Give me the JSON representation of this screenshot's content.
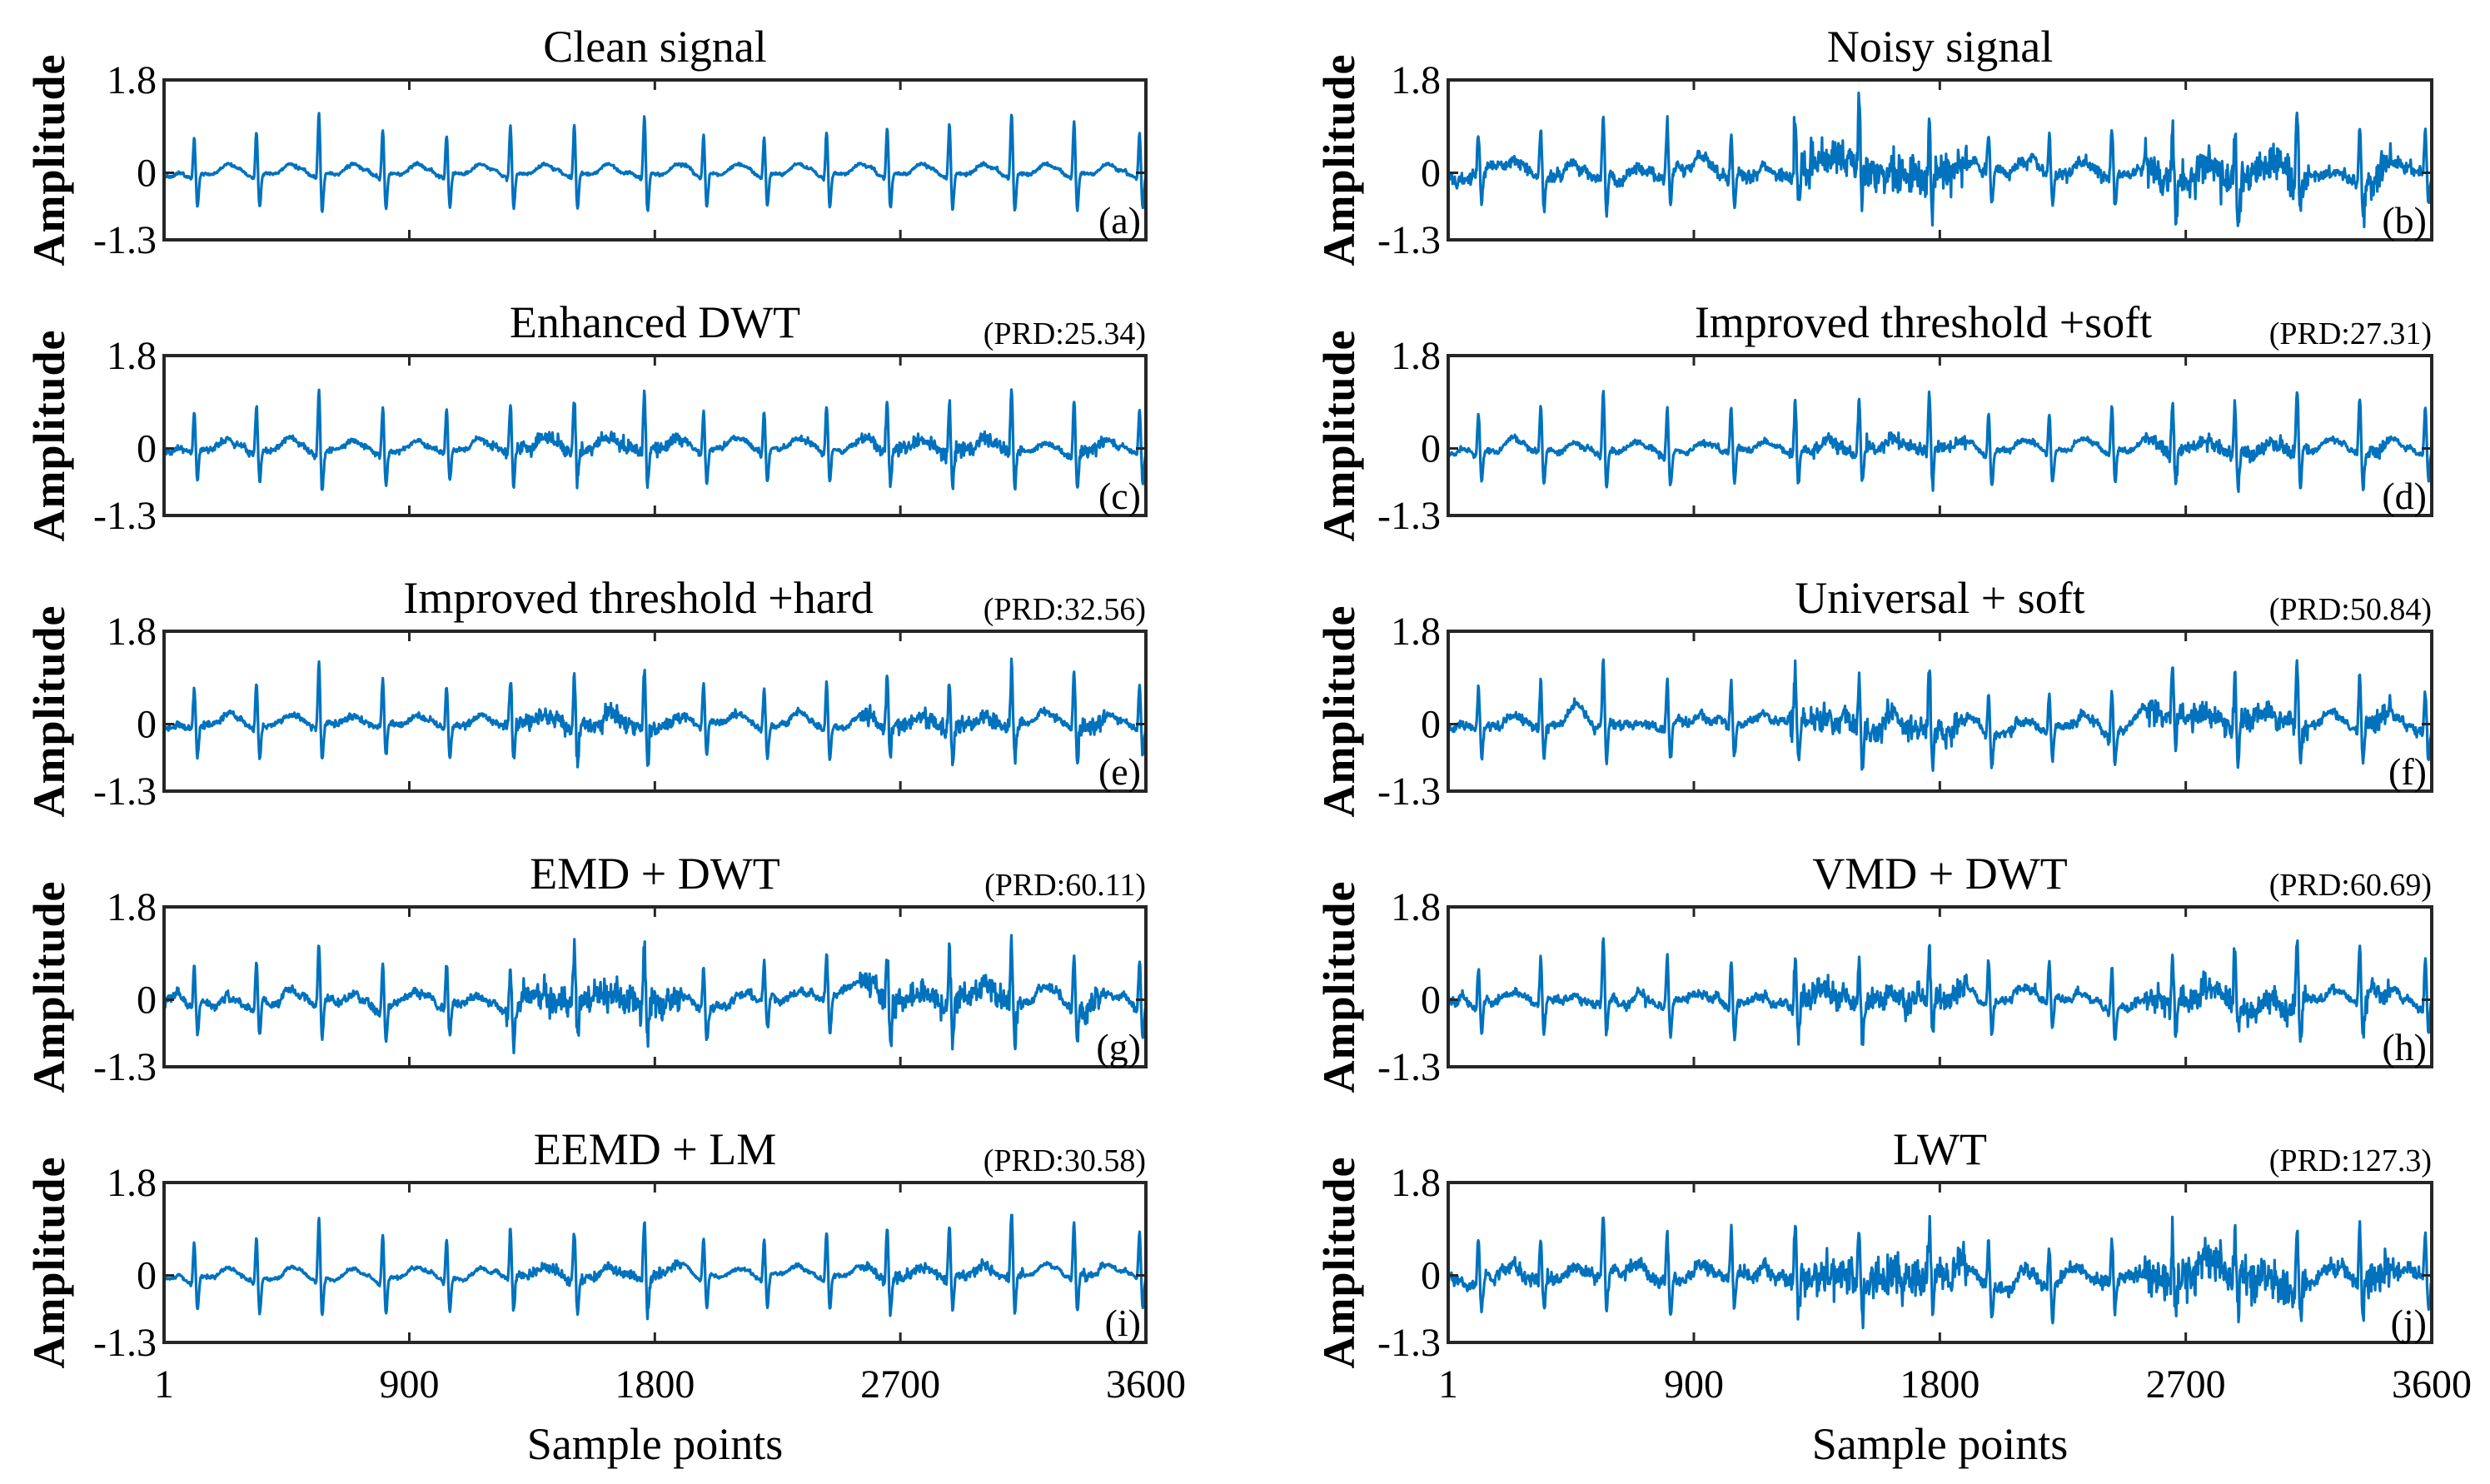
{
  "chart_data": {
    "type": "line",
    "xlabel": "Sample points",
    "ylabel": "Amplitude",
    "xlim": [
      1,
      3600
    ],
    "ylim": [
      -1.3,
      1.8
    ],
    "xticks": [
      "1",
      "900",
      "1800",
      "2700",
      "3600"
    ],
    "xtick_values": [
      1,
      900,
      1800,
      2700,
      3600
    ],
    "yticks": [
      "1.8",
      "0",
      "-1.3"
    ],
    "ytick_values": [
      1.8,
      0,
      -1.3
    ],
    "grid": false,
    "color": "#0072BD",
    "r_peaks": {
      "samples": [
        112,
        340,
        569,
        803,
        1037,
        1271,
        1505,
        1762,
        1979,
        2201,
        2430,
        2652,
        2880,
        3108,
        3337,
        3577
      ],
      "amplitudes": [
        0.79,
        0.91,
        1.27,
        0.96,
        0.86,
        1.03,
        1.04,
        1.21,
        0.84,
        0.79,
        0.92,
        0.99,
        1.07,
        1.27,
        1.11,
        0.88
      ]
    },
    "panels": [
      {
        "title": "Clean signal",
        "prd": "",
        "label": "(a)",
        "noise": 0.015,
        "burst": 0
      },
      {
        "title": "Noisy signal",
        "prd": "",
        "label": "(b)",
        "noise": 0.05,
        "burst": 0.13
      },
      {
        "title": "Enhanced DWT",
        "prd": "(PRD:25.34)",
        "label": "(c)",
        "noise": 0.025,
        "burst": 0.04
      },
      {
        "title": "Improved threshold +soft",
        "prd": "(PRD:27.31)",
        "label": "(d)",
        "noise": 0.025,
        "burst": 0.04
      },
      {
        "title": "Improved threshold +hard",
        "prd": "(PRD:32.56)",
        "label": "(e)",
        "noise": 0.03,
        "burst": 0.05
      },
      {
        "title": "Universal + soft",
        "prd": "(PRD:50.84)",
        "label": "(f)",
        "noise": 0.035,
        "burst": 0.08
      },
      {
        "title": "EMD + DWT",
        "prd": "(PRD:60.11)",
        "label": "(g)",
        "noise": 0.035,
        "burst": 0.09
      },
      {
        "title": "VMD + DWT",
        "prd": "(PRD:60.69)",
        "label": "(h)",
        "noise": 0.035,
        "burst": 0.08
      },
      {
        "title": "EEMD + LM",
        "prd": "(PRD:30.58)",
        "label": "(i)",
        "noise": 0.015,
        "burst": 0.03
      },
      {
        "title": "LWT",
        "prd": "(PRD:127.3)",
        "label": "(j)",
        "noise": 0.06,
        "burst": 0.13
      }
    ]
  }
}
